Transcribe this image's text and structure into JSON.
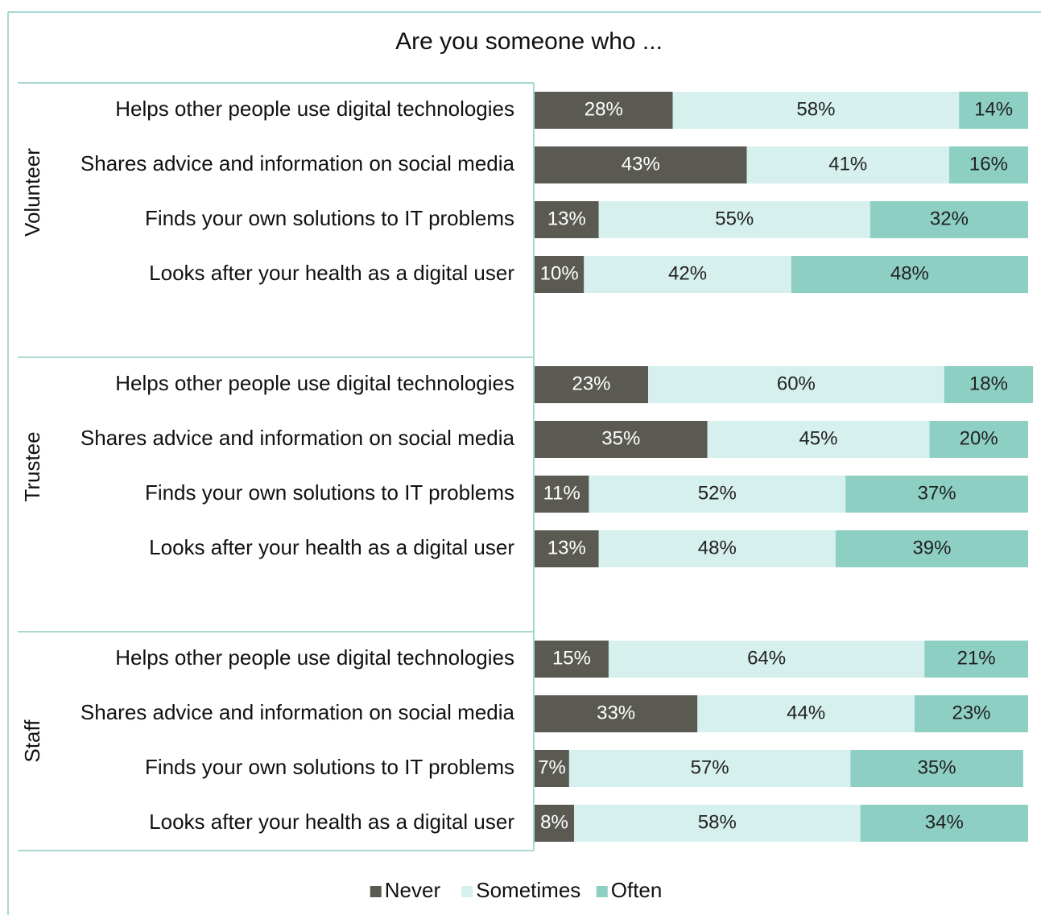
{
  "chart_data": {
    "type": "bar",
    "orientation": "horizontal",
    "stacked": true,
    "title": "Are you someone who ...",
    "groups": [
      "Volunteer",
      "Trustee",
      "Staff"
    ],
    "categories": [
      "Helps other people use digital technologies",
      "Shares advice and information on social media",
      "Finds your own solutions to IT problems",
      "Looks after your health as a digital user",
      "Helps other people use digital technologies",
      "Shares advice and information on social media",
      "Finds your own solutions to IT problems",
      "Looks after your health as a digital user",
      "Helps other people use digital technologies",
      "Shares advice and information on social media",
      "Finds your own solutions to IT problems",
      "Looks after your health as a digital user"
    ],
    "series": [
      {
        "name": "Never",
        "color": "#5b5a52",
        "label_color": "#ffffff",
        "values": [
          28,
          43,
          13,
          10,
          23,
          35,
          11,
          13,
          15,
          33,
          7,
          8
        ],
        "value_labels": [
          "28%",
          "43%",
          "13%",
          "10%",
          "23%",
          "35%",
          "11%",
          "13%",
          "15%",
          "33%",
          "7%",
          "8%"
        ]
      },
      {
        "name": "Sometimes",
        "color": "#d6f0ee",
        "label_color": "#222222",
        "values": [
          58,
          41,
          55,
          42,
          60,
          45,
          52,
          48,
          64,
          44,
          57,
          58
        ],
        "value_labels": [
          "58%",
          "41%",
          "55%",
          "42%",
          "60%",
          "45%",
          "52%",
          "48%",
          "64%",
          "44%",
          "57%",
          "58%"
        ]
      },
      {
        "name": "Often",
        "color": "#8dd0c3",
        "label_color": "#222222",
        "values": [
          14,
          16,
          32,
          48,
          18,
          20,
          37,
          39,
          21,
          23,
          35,
          34
        ],
        "value_labels": [
          "14%",
          "16%",
          "32%",
          "48%",
          "18%",
          "20%",
          "37%",
          "39%",
          "21%",
          "23%",
          "35%",
          "34%"
        ]
      }
    ],
    "xlim": [
      0,
      100
    ],
    "legend": "bottom"
  }
}
